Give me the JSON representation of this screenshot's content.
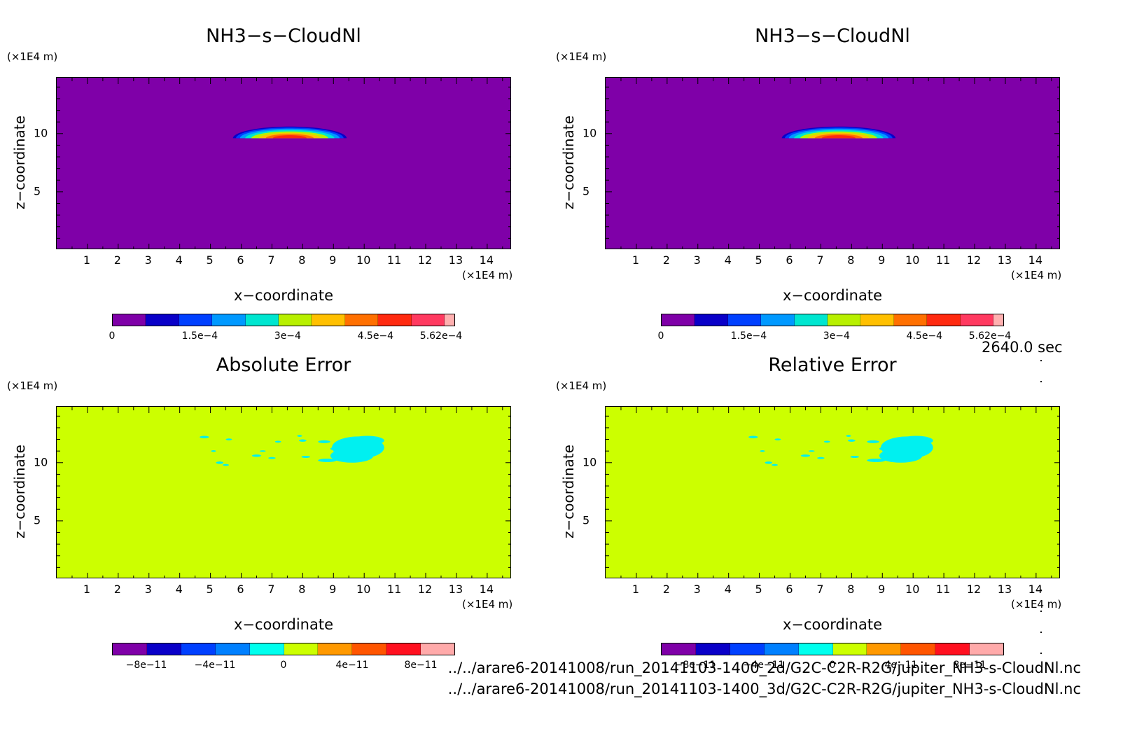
{
  "time_label": "2640.0 sec",
  "files": [
    "../../arare6-20141008/run_20141103-1400_2d/G2C-C2R-R2G/jupiter_NH3-s-CloudNl.nc",
    "../../arare6-20141008/run_20141103-1400_3d/G2C-C2R-R2G/jupiter_NH3-s-CloudNl.nc"
  ],
  "colors": {
    "field_levels": [
      "#7f00a8",
      "#0a00c8",
      "#0040ff",
      "#0099ff",
      "#00e6d0",
      "#b8f000",
      "#ffc000",
      "#ff7000",
      "#ff2a10",
      "#ff3a60",
      "#ffb0b0"
    ],
    "error_levels": [
      "#7f00a8",
      "#0a00c8",
      "#0040ff",
      "#0080ff",
      "#00ffee",
      "#ccff00",
      "#ff9900",
      "#ff5500",
      "#ff1020",
      "#ffaaaa"
    ],
    "error_background": "#ccff00",
    "error_patch": "#00f0f0"
  },
  "chart_data": [
    {
      "type": "heatmap",
      "title": "NH3−s−CloudNl",
      "xlabel": "x−coordinate",
      "ylabel": "z−coordinate",
      "x_unit": "(×1E4 m)",
      "z_unit": "(×1E4 m)",
      "xlim": [
        0,
        14.8
      ],
      "ylim": [
        0,
        14.8
      ],
      "x_ticks": [
        "1",
        "2",
        "3",
        "4",
        "5",
        "6",
        "7",
        "8",
        "9",
        "10",
        "11",
        "12",
        "13",
        "14"
      ],
      "y_ticks": [
        "5",
        "10"
      ],
      "colorbar_labels": [
        "0",
        "1.5e−4",
        "3e−4",
        "4.5e−4",
        "5.62e−4"
      ],
      "colorbar_range": [
        0,
        0.000562
      ],
      "feature": "lens-shaped cloud layer near z≈10, x≈5.5–9.6, max ≈ 5.62e−4"
    },
    {
      "type": "heatmap",
      "title": "NH3−s−CloudNl",
      "xlabel": "x−coordinate",
      "ylabel": "z−coordinate",
      "x_unit": "(×1E4 m)",
      "z_unit": "(×1E4 m)",
      "xlim": [
        0,
        14.8
      ],
      "ylim": [
        0,
        14.8
      ],
      "x_ticks": [
        "1",
        "2",
        "3",
        "4",
        "5",
        "6",
        "7",
        "8",
        "9",
        "10",
        "11",
        "12",
        "13",
        "14"
      ],
      "y_ticks": [
        "5",
        "10"
      ],
      "colorbar_labels": [
        "0",
        "1.5e−4",
        "3e−4",
        "4.5e−4",
        "5.62e−4"
      ],
      "colorbar_range": [
        0,
        0.000562
      ],
      "feature": "lens-shaped cloud layer near z≈10, x≈5.5–9.6, max ≈ 5.62e−4"
    },
    {
      "type": "heatmap",
      "title": "Absolute Error",
      "xlabel": "x−coordinate",
      "ylabel": "z−coordinate",
      "x_unit": "(×1E4 m)",
      "z_unit": "(×1E4 m)",
      "xlim": [
        0,
        14.8
      ],
      "ylim": [
        0,
        14.8
      ],
      "x_ticks": [
        "1",
        "2",
        "3",
        "4",
        "5",
        "6",
        "7",
        "8",
        "9",
        "10",
        "11",
        "12",
        "13",
        "14"
      ],
      "y_ticks": [
        "5",
        "10"
      ],
      "colorbar_labels": [
        "−8e−11",
        "−4e−11",
        "0",
        "4e−11",
        "8e−11"
      ],
      "colorbar_range": [
        -1e-10,
        1e-10
      ],
      "feature": "field ≈ 0 everywhere; small negative patches near z≈10–12, x≈5–10.5"
    },
    {
      "type": "heatmap",
      "title": "Relative Error",
      "xlabel": "x−coordinate",
      "ylabel": "z−coordinate",
      "x_unit": "(×1E4 m)",
      "z_unit": "(×1E4 m)",
      "xlim": [
        0,
        14.8
      ],
      "ylim": [
        0,
        14.8
      ],
      "x_ticks": [
        "1",
        "2",
        "3",
        "4",
        "5",
        "6",
        "7",
        "8",
        "9",
        "10",
        "11",
        "12",
        "13",
        "14"
      ],
      "y_ticks": [
        "5",
        "10"
      ],
      "colorbar_labels": [
        "−8e−11",
        "−4e−11",
        "0",
        "4e−11",
        "8e−11"
      ],
      "colorbar_range": [
        -1e-10,
        1e-10
      ],
      "feature": "field ≈ 0 everywhere; small negative patches near z≈10–12, x≈5–10.5"
    }
  ]
}
